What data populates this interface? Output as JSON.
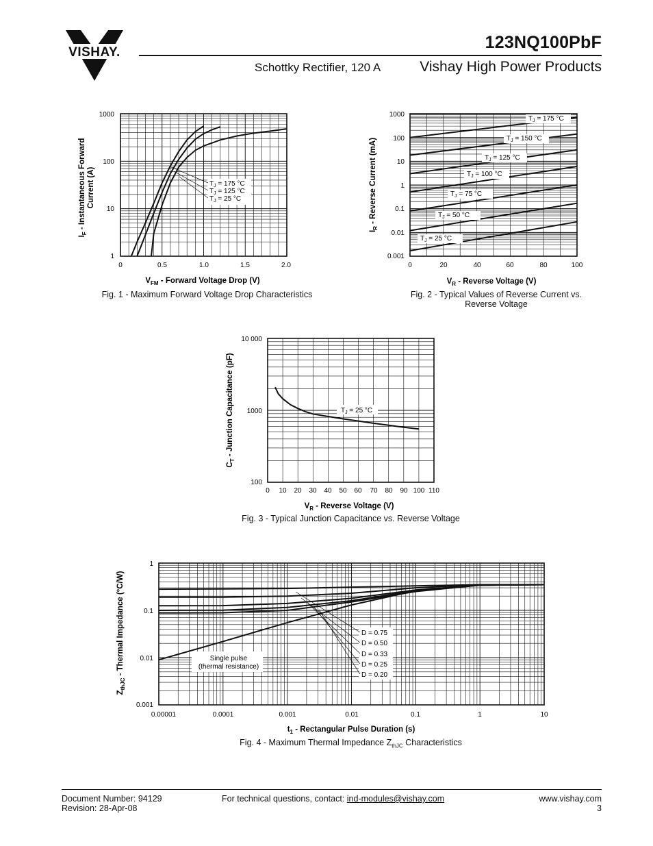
{
  "header": {
    "logo_text": "VISHAY.",
    "part_number": "123NQ100PbF",
    "subtitle": "Schottky Rectifier, 120 A",
    "brand_line": "Vishay High Power Products"
  },
  "chart_data": [
    {
      "type": "line",
      "caption": "Fig. 1 - Maximum Forward Voltage Drop Characteristics",
      "xlabel_main": "V",
      "xlabel_sub": "FM",
      "xlabel_rest": " - Forward Voltage Drop (V)",
      "ylabel_main": "I",
      "ylabel_sub": "F",
      "ylabel_rest": " - Instantaneous Forward",
      "ylabel_line2": "Current (A)",
      "xlim": [
        0,
        2.0
      ],
      "ylim": [
        1,
        1000
      ],
      "yscale": "log",
      "x_ticks": [
        "0",
        "0.5",
        "1.0",
        "1.5",
        "2.0"
      ],
      "y_ticks": [
        "1",
        "10",
        "100",
        "1000"
      ],
      "series": [
        {
          "name": "175 °C",
          "x": [
            0.13,
            0.2,
            0.3,
            0.4,
            0.5,
            0.6,
            0.7,
            0.8,
            0.9,
            1.0
          ],
          "y": [
            1,
            2,
            5,
            13,
            35,
            80,
            160,
            280,
            420,
            550
          ]
        },
        {
          "name": "125 °C",
          "x": [
            0.2,
            0.3,
            0.4,
            0.5,
            0.6,
            0.7,
            0.8,
            0.9,
            1.0,
            1.1,
            1.2
          ],
          "y": [
            1,
            2.8,
            8,
            22,
            55,
            110,
            190,
            290,
            380,
            460,
            530
          ]
        },
        {
          "name": "25 °C",
          "x": [
            0.37,
            0.4,
            0.5,
            0.6,
            0.7,
            0.8,
            0.9,
            1.0,
            1.2,
            1.4,
            1.6,
            1.8,
            2.0
          ],
          "y": [
            1,
            3,
            12,
            35,
            75,
            120,
            170,
            210,
            280,
            340,
            390,
            430,
            480
          ]
        }
      ],
      "legend": [
        "T",
        "J",
        " = 175 °C",
        " = 125 °C",
        " = 25 °C"
      ]
    },
    {
      "type": "line",
      "caption_l1": "Fig. 2 - Typical Values of Reverse Current vs.",
      "caption_l2": "Reverse Voltage",
      "xlabel_main": "V",
      "xlabel_sub": "R",
      "xlabel_rest": " - Reverse Voltage (V)",
      "ylabel_main": "I",
      "ylabel_sub": "R",
      "ylabel_rest": " - Reverse Current (mA)",
      "xlim": [
        0,
        100
      ],
      "ylim": [
        0.001,
        1000
      ],
      "yscale": "log",
      "x_ticks": [
        "0",
        "20",
        "40",
        "60",
        "80",
        "100"
      ],
      "y_ticks": [
        "0.001",
        "0.01",
        "0.1",
        "1",
        "10",
        "100",
        "1000"
      ],
      "series": [
        {
          "name": "175 °C",
          "x": [
            0,
            100
          ],
          "y": [
            100,
            700
          ]
        },
        {
          "name": "150 °C",
          "x": [
            0,
            100
          ],
          "y": [
            18,
            140
          ]
        },
        {
          "name": "125 °C",
          "x": [
            0,
            100
          ],
          "y": [
            3,
            30
          ]
        },
        {
          "name": "100 °C",
          "x": [
            0,
            100
          ],
          "y": [
            0.5,
            6
          ]
        },
        {
          "name": "75 °C",
          "x": [
            0,
            100
          ],
          "y": [
            0.08,
            1
          ]
        },
        {
          "name": "50 °C",
          "x": [
            0,
            100
          ],
          "y": [
            0.012,
            0.17
          ]
        },
        {
          "name": "25 °C",
          "x": [
            0,
            100
          ],
          "y": [
            0.0017,
            0.028
          ]
        }
      ],
      "labels": [
        "T",
        "J",
        " = 175 °C",
        " = 150 °C",
        " = 125 °C",
        " = 100 °C",
        " = 75 °C",
        " = 50 °C",
        " = 25 °C"
      ]
    },
    {
      "type": "line",
      "caption": "Fig. 3 - Typical Junction Capacitance vs. Reverse Voltage",
      "xlabel_main": "V",
      "xlabel_sub": "R",
      "xlabel_rest": " - Reverse Voltage (V)",
      "ylabel_main": "C",
      "ylabel_sub": "T",
      "ylabel_rest": " - Junction Capacitance (pF)",
      "xlim": [
        0,
        110
      ],
      "ylim": [
        100,
        10000
      ],
      "yscale": "log",
      "x_ticks": [
        "0",
        "10",
        "20",
        "30",
        "40",
        "50",
        "60",
        "70",
        "80",
        "90",
        "100",
        "110"
      ],
      "y_ticks": [
        "100",
        "1000",
        "10 000"
      ],
      "series": [
        {
          "name": "25 °C",
          "x": [
            5,
            7,
            10,
            15,
            20,
            25,
            30,
            40,
            50,
            60,
            70,
            80,
            90,
            100
          ],
          "y": [
            2100,
            1700,
            1450,
            1200,
            1060,
            960,
            890,
            820,
            760,
            710,
            660,
            620,
            580,
            550
          ]
        }
      ],
      "legend": [
        "T",
        "J",
        " = 25 °C"
      ]
    },
    {
      "type": "line",
      "caption_main": "Fig. 4 - Maximum Thermal Impedance Z",
      "caption_sub": "thJC",
      "caption_rest": " Characteristics",
      "xlabel_main": "t",
      "xlabel_sub": "1",
      "xlabel_rest": " - Rectangular Pulse Duration (s)",
      "ylabel_main": "Z",
      "ylabel_sub": "thJC",
      "ylabel_rest": " - Thermal Impedance (°C/W)",
      "xlim": [
        1e-05,
        10
      ],
      "ylim": [
        0.001,
        1
      ],
      "xscale": "log",
      "yscale": "log",
      "x_ticks": [
        "0.00001",
        "0.0001",
        "0.001",
        "0.01",
        "0.1",
        "1",
        "10"
      ],
      "y_ticks": [
        "0.001",
        "0.01",
        "0.1",
        "1"
      ],
      "series": [
        {
          "name": "D = 0.75",
          "x": [
            1e-05,
            0.0001,
            0.001,
            0.01,
            0.1,
            1,
            10
          ],
          "y": [
            0.28,
            0.283,
            0.29,
            0.31,
            0.33,
            0.35,
            0.35
          ]
        },
        {
          "name": "D = 0.50",
          "x": [
            1e-05,
            0.0001,
            0.001,
            0.01,
            0.1,
            1,
            10
          ],
          "y": [
            0.19,
            0.19,
            0.2,
            0.23,
            0.3,
            0.35,
            0.35
          ]
        },
        {
          "name": "D = 0.33",
          "x": [
            1e-05,
            0.0001,
            0.001,
            0.01,
            0.1,
            1,
            10
          ],
          "y": [
            0.125,
            0.126,
            0.14,
            0.18,
            0.27,
            0.34,
            0.35
          ]
        },
        {
          "name": "D = 0.25",
          "x": [
            1e-05,
            0.0001,
            0.001,
            0.01,
            0.1,
            1,
            10
          ],
          "y": [
            0.1,
            0.101,
            0.115,
            0.16,
            0.26,
            0.34,
            0.35
          ]
        },
        {
          "name": "D = 0.20",
          "x": [
            1e-05,
            0.0001,
            0.001,
            0.01,
            0.1,
            1,
            10
          ],
          "y": [
            0.088,
            0.089,
            0.1,
            0.15,
            0.25,
            0.34,
            0.35
          ]
        },
        {
          "name": "Single pulse",
          "x": [
            1e-05,
            0.0001,
            0.001,
            0.01,
            0.1,
            1,
            10
          ],
          "y": [
            0.009,
            0.022,
            0.055,
            0.13,
            0.26,
            0.34,
            0.35
          ]
        }
      ],
      "labels": [
        "D = 0.75",
        "D = 0.50",
        "D = 0.33",
        "D = 0.25",
        "D = 0.20"
      ],
      "annotation": [
        "Single pulse",
        "(thermal resistance)"
      ]
    }
  ],
  "footer": {
    "doc_number": "Document Number: 94129",
    "revision": "Revision: 28-Apr-08",
    "contact_text": "For technical questions, contact: ",
    "contact_email": "ind-modules@vishay.com",
    "website": "www.vishay.com",
    "page": "3"
  }
}
